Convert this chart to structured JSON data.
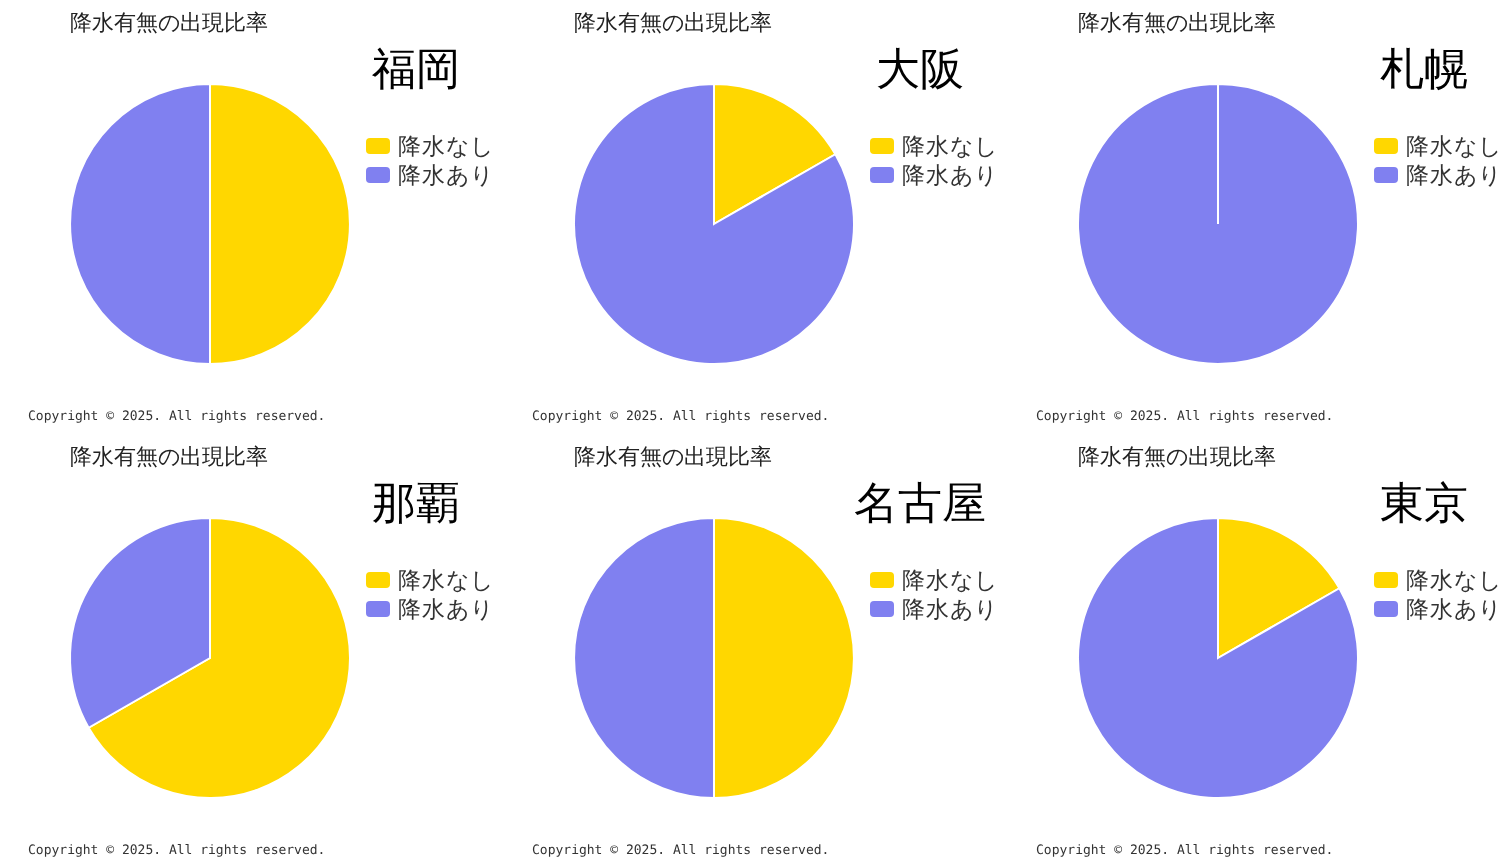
{
  "chart_data": [
    {
      "type": "pie",
      "title": "福岡",
      "subtitle": "降水有無の出現比率",
      "categories": [
        "降水なし",
        "降水あり"
      ],
      "values": [
        50,
        50
      ],
      "colors": [
        "#ffd700",
        "#8080f0"
      ],
      "legend": "right",
      "annotations": [
        "Copyright © 2025. All rights reserved."
      ]
    },
    {
      "type": "pie",
      "title": "大阪",
      "subtitle": "降水有無の出現比率",
      "categories": [
        "降水なし",
        "降水あり"
      ],
      "values": [
        16.7,
        83.3
      ],
      "colors": [
        "#ffd700",
        "#8080f0"
      ],
      "legend": "right",
      "annotations": [
        "Copyright © 2025. All rights reserved."
      ]
    },
    {
      "type": "pie",
      "title": "札幌",
      "subtitle": "降水有無の出現比率",
      "categories": [
        "降水なし",
        "降水あり"
      ],
      "values": [
        0,
        100
      ],
      "colors": [
        "#ffd700",
        "#8080f0"
      ],
      "legend": "right",
      "annotations": [
        "Copyright © 2025. All rights reserved."
      ]
    },
    {
      "type": "pie",
      "title": "那覇",
      "subtitle": "降水有無の出現比率",
      "categories": [
        "降水なし",
        "降水あり"
      ],
      "values": [
        66.7,
        33.3
      ],
      "colors": [
        "#ffd700",
        "#8080f0"
      ],
      "legend": "right",
      "annotations": [
        "Copyright © 2025. All rights reserved."
      ]
    },
    {
      "type": "pie",
      "title": "名古屋",
      "subtitle": "降水有無の出現比率",
      "categories": [
        "降水なし",
        "降水あり"
      ],
      "values": [
        50,
        50
      ],
      "colors": [
        "#ffd700",
        "#8080f0"
      ],
      "legend": "right",
      "annotations": [
        "Copyright © 2025. All rights reserved."
      ]
    },
    {
      "type": "pie",
      "title": "東京",
      "subtitle": "降水有無の出現比率",
      "categories": [
        "降水なし",
        "降水あり"
      ],
      "values": [
        16.7,
        83.3
      ],
      "colors": [
        "#ffd700",
        "#8080f0"
      ],
      "legend": "right",
      "annotations": [
        "Copyright © 2025. All rights reserved."
      ]
    }
  ]
}
